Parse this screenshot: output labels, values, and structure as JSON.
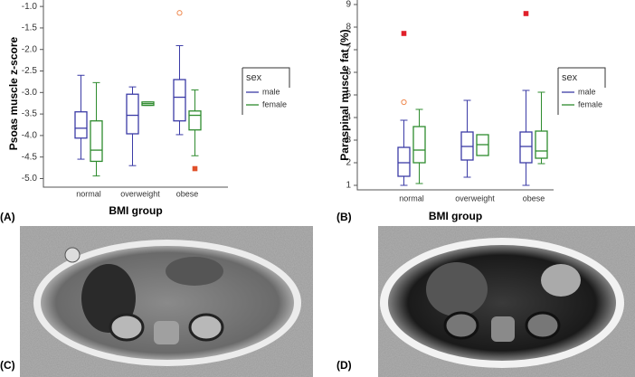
{
  "chart_data": [
    {
      "type": "box",
      "ylabel": "Psoas muscle z-score",
      "xlabel": "BMI group",
      "categories": [
        "normal",
        "overweight",
        "obese"
      ],
      "ylim": [
        -5.2,
        -0.85
      ],
      "yticks": [
        {
          "value": -1,
          "label": "-1.0"
        },
        -1.5,
        {
          "value": -2,
          "label": "-2.0"
        },
        -2.5,
        {
          "value": -3,
          "label": "-3.0"
        },
        -3.5,
        {
          "value": -4,
          "label": "-4.0"
        },
        -4.5,
        {
          "value": -5,
          "label": "-5.0"
        }
      ],
      "legend_title": "sex",
      "outlier_color": "#f08a50",
      "far_outlier_color": "#e0502a",
      "series": [
        {
          "name": "male",
          "color": "#3b3ba6",
          "whisker_low": [
            -4.55,
            -4.7,
            -3.98
          ],
          "q1": [
            -4.06,
            -3.96,
            -3.66
          ],
          "median": [
            -3.83,
            -3.53,
            -3.11
          ],
          "q3": [
            -3.45,
            -3.04,
            -2.7
          ],
          "whisker_high": [
            -2.6,
            -2.87,
            -1.91
          ],
          "outliers": [
            [],
            [],
            [
              -1.15
            ]
          ],
          "far_outliers": [
            [],
            [],
            []
          ]
        },
        {
          "name": "female",
          "color": "#2e8b2e",
          "whisker_low": [
            -4.94,
            -3.3,
            -4.47
          ],
          "q1": [
            -4.6,
            -3.3,
            -3.87
          ],
          "median": [
            -4.34,
            -3.26,
            -3.53
          ],
          "q3": [
            -3.66,
            -3.22,
            -3.43
          ],
          "whisker_high": [
            -2.77,
            -3.22,
            -2.94
          ],
          "outliers": [
            [],
            [],
            []
          ],
          "far_outliers": [
            [],
            [],
            [
              -4.77
            ]
          ]
        }
      ]
    },
    {
      "type": "box",
      "ylabel": "Paraspinal muscle fat (%)",
      "xlabel": "BMI group",
      "categories": [
        "normal",
        "overweight",
        "obese"
      ],
      "ylim": [
        0.8,
        9.2
      ],
      "yticks": [
        1,
        2,
        3,
        4,
        5,
        6,
        7,
        8,
        9
      ],
      "legend_title": "sex",
      "outlier_color": "#f08a50",
      "far_outlier_color": "#e0202a",
      "series": [
        {
          "name": "male",
          "color": "#3b3ba6",
          "whisker_low": [
            1.0,
            1.36,
            1.0
          ],
          "q1": [
            1.4,
            2.12,
            2.0
          ],
          "median": [
            2.0,
            2.72,
            2.72
          ],
          "q3": [
            2.68,
            3.36,
            3.36
          ],
          "whisker_high": [
            3.88,
            4.76,
            5.2
          ],
          "outliers": [
            [
              4.68
            ],
            [],
            []
          ],
          "far_outliers": [
            [
              7.72
            ],
            [],
            [
              8.6
            ]
          ]
        },
        {
          "name": "female",
          "color": "#2e8b2e",
          "whisker_low": [
            1.08,
            2.32,
            1.96
          ],
          "q1": [
            2.0,
            2.32,
            2.2
          ],
          "median": [
            2.56,
            2.8,
            2.52
          ],
          "q3": [
            3.6,
            3.24,
            3.4
          ],
          "whisker_high": [
            4.36,
            3.24,
            5.12
          ],
          "outliers": [
            [],
            [],
            []
          ],
          "far_outliers": [
            [],
            [],
            []
          ]
        }
      ]
    }
  ],
  "figure": {
    "panel_labels": [
      "(A)",
      "(B)",
      "(C)",
      "(D)"
    ]
  }
}
